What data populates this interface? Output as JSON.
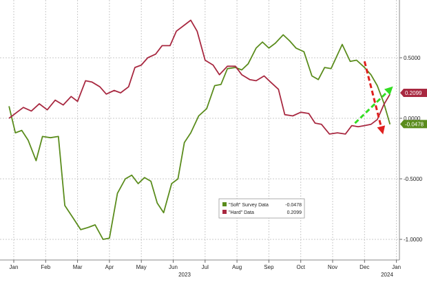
{
  "chart_data": {
    "type": "line",
    "title": "",
    "xlabel": "",
    "ylabel": "",
    "year_labels": [
      "2023",
      "2024"
    ],
    "month_labels": [
      "Jan",
      "Feb",
      "Mar",
      "Apr",
      "May",
      "Jun",
      "Jul",
      "Aug",
      "Sep",
      "Oct",
      "Nov",
      "Dec",
      "Jan"
    ],
    "x_ticks_month_index": [
      0,
      1,
      2,
      3,
      4,
      5,
      6,
      7,
      8,
      9,
      10,
      11,
      12
    ],
    "y_ticks": [
      -1.0,
      -0.5,
      0.0,
      0.5
    ],
    "y_tick_labels": [
      "-1.0000",
      "-0.5000",
      "0.0000",
      "0.5000"
    ],
    "ylim": [
      -1.2,
      0.95
    ],
    "xlim": [
      -0.15,
      13.0
    ],
    "grid": true,
    "legend": {
      "position": "bottom-center",
      "entries": [
        {
          "label": "\"Soft\" Survey Data",
          "value": "-0.0478"
        },
        {
          "label": "\"Hard\" Data",
          "value": "0.2099"
        }
      ]
    },
    "last_value_badges": [
      {
        "series": "Hard",
        "value": 0.2099,
        "label": "0.2099"
      },
      {
        "series": "Soft",
        "value": -0.0478,
        "label": "-0.0478"
      }
    ],
    "series": [
      {
        "name": "\"Soft\" Survey Data",
        "color": "#5a8c1c",
        "points": [
          [
            -0.15,
            0.1
          ],
          [
            0.05,
            -0.12
          ],
          [
            0.25,
            -0.1
          ],
          [
            0.45,
            -0.18
          ],
          [
            0.7,
            -0.35
          ],
          [
            0.9,
            -0.15
          ],
          [
            1.15,
            -0.16
          ],
          [
            1.4,
            -0.15
          ],
          [
            1.6,
            -0.72
          ],
          [
            1.85,
            -0.82
          ],
          [
            2.1,
            -0.92
          ],
          [
            2.35,
            -0.9
          ],
          [
            2.55,
            -0.88
          ],
          [
            2.8,
            -1.0
          ],
          [
            3.0,
            -0.99
          ],
          [
            3.25,
            -0.62
          ],
          [
            3.5,
            -0.5
          ],
          [
            3.7,
            -0.47
          ],
          [
            3.9,
            -0.54
          ],
          [
            4.1,
            -0.49
          ],
          [
            4.3,
            -0.52
          ],
          [
            4.5,
            -0.7
          ],
          [
            4.7,
            -0.78
          ],
          [
            4.95,
            -0.54
          ],
          [
            5.15,
            -0.5
          ],
          [
            5.35,
            -0.2
          ],
          [
            5.55,
            -0.12
          ],
          [
            5.8,
            0.02
          ],
          [
            6.05,
            0.08
          ],
          [
            6.3,
            0.27
          ],
          [
            6.5,
            0.28
          ],
          [
            6.7,
            0.41
          ],
          [
            6.95,
            0.42
          ],
          [
            7.15,
            0.4
          ],
          [
            7.35,
            0.45
          ],
          [
            7.6,
            0.58
          ],
          [
            7.8,
            0.63
          ],
          [
            8.0,
            0.58
          ],
          [
            8.2,
            0.62
          ],
          [
            8.45,
            0.69
          ],
          [
            8.65,
            0.64
          ],
          [
            8.85,
            0.58
          ],
          [
            9.1,
            0.55
          ],
          [
            9.35,
            0.35
          ],
          [
            9.55,
            0.32
          ],
          [
            9.75,
            0.42
          ],
          [
            9.95,
            0.41
          ],
          [
            10.3,
            0.61
          ],
          [
            10.55,
            0.47
          ],
          [
            10.75,
            0.48
          ],
          [
            11.0,
            0.42
          ],
          [
            11.2,
            0.36
          ],
          [
            11.4,
            0.27
          ],
          [
            11.6,
            0.13
          ],
          [
            11.8,
            -0.05
          ]
        ]
      },
      {
        "name": "\"Hard\" Data",
        "color": "#a82840",
        "points": [
          [
            -0.15,
            0.0
          ],
          [
            0.1,
            0.05
          ],
          [
            0.3,
            0.09
          ],
          [
            0.55,
            0.06
          ],
          [
            0.8,
            0.12
          ],
          [
            1.05,
            0.07
          ],
          [
            1.3,
            0.15
          ],
          [
            1.55,
            0.11
          ],
          [
            1.8,
            0.18
          ],
          [
            2.0,
            0.14
          ],
          [
            2.25,
            0.31
          ],
          [
            2.45,
            0.3
          ],
          [
            2.7,
            0.26
          ],
          [
            2.9,
            0.2
          ],
          [
            3.15,
            0.23
          ],
          [
            3.35,
            0.21
          ],
          [
            3.6,
            0.26
          ],
          [
            3.8,
            0.42
          ],
          [
            4.0,
            0.44
          ],
          [
            4.2,
            0.5
          ],
          [
            4.45,
            0.53
          ],
          [
            4.65,
            0.6
          ],
          [
            4.9,
            0.6
          ],
          [
            5.1,
            0.72
          ],
          [
            5.35,
            0.77
          ],
          [
            5.55,
            0.81
          ],
          [
            5.75,
            0.72
          ],
          [
            6.0,
            0.48
          ],
          [
            6.25,
            0.44
          ],
          [
            6.45,
            0.36
          ],
          [
            6.7,
            0.43
          ],
          [
            6.95,
            0.43
          ],
          [
            7.15,
            0.36
          ],
          [
            7.4,
            0.32
          ],
          [
            7.6,
            0.31
          ],
          [
            7.85,
            0.35
          ],
          [
            8.05,
            0.3
          ],
          [
            8.3,
            0.24
          ],
          [
            8.5,
            0.03
          ],
          [
            8.75,
            0.02
          ],
          [
            9.0,
            0.05
          ],
          [
            9.25,
            0.04
          ],
          [
            9.45,
            -0.04
          ],
          [
            9.65,
            -0.05
          ],
          [
            9.9,
            -0.13
          ],
          [
            10.15,
            -0.12
          ],
          [
            10.4,
            -0.13
          ],
          [
            10.6,
            -0.06
          ],
          [
            10.8,
            -0.07
          ],
          [
            11.0,
            -0.06
          ],
          [
            11.2,
            -0.05
          ],
          [
            11.4,
            -0.01
          ],
          [
            11.6,
            0.11
          ],
          [
            11.8,
            0.2
          ]
        ]
      }
    ],
    "annotations": [
      {
        "type": "dashed-arrow",
        "color": "#e0201e",
        "from": [
          11.0,
          0.47
        ],
        "to": [
          11.55,
          -0.1
        ]
      },
      {
        "type": "dashed-arrow",
        "color": "#33dd22",
        "from": [
          10.7,
          -0.04
        ],
        "to": [
          11.8,
          0.24
        ]
      }
    ]
  }
}
